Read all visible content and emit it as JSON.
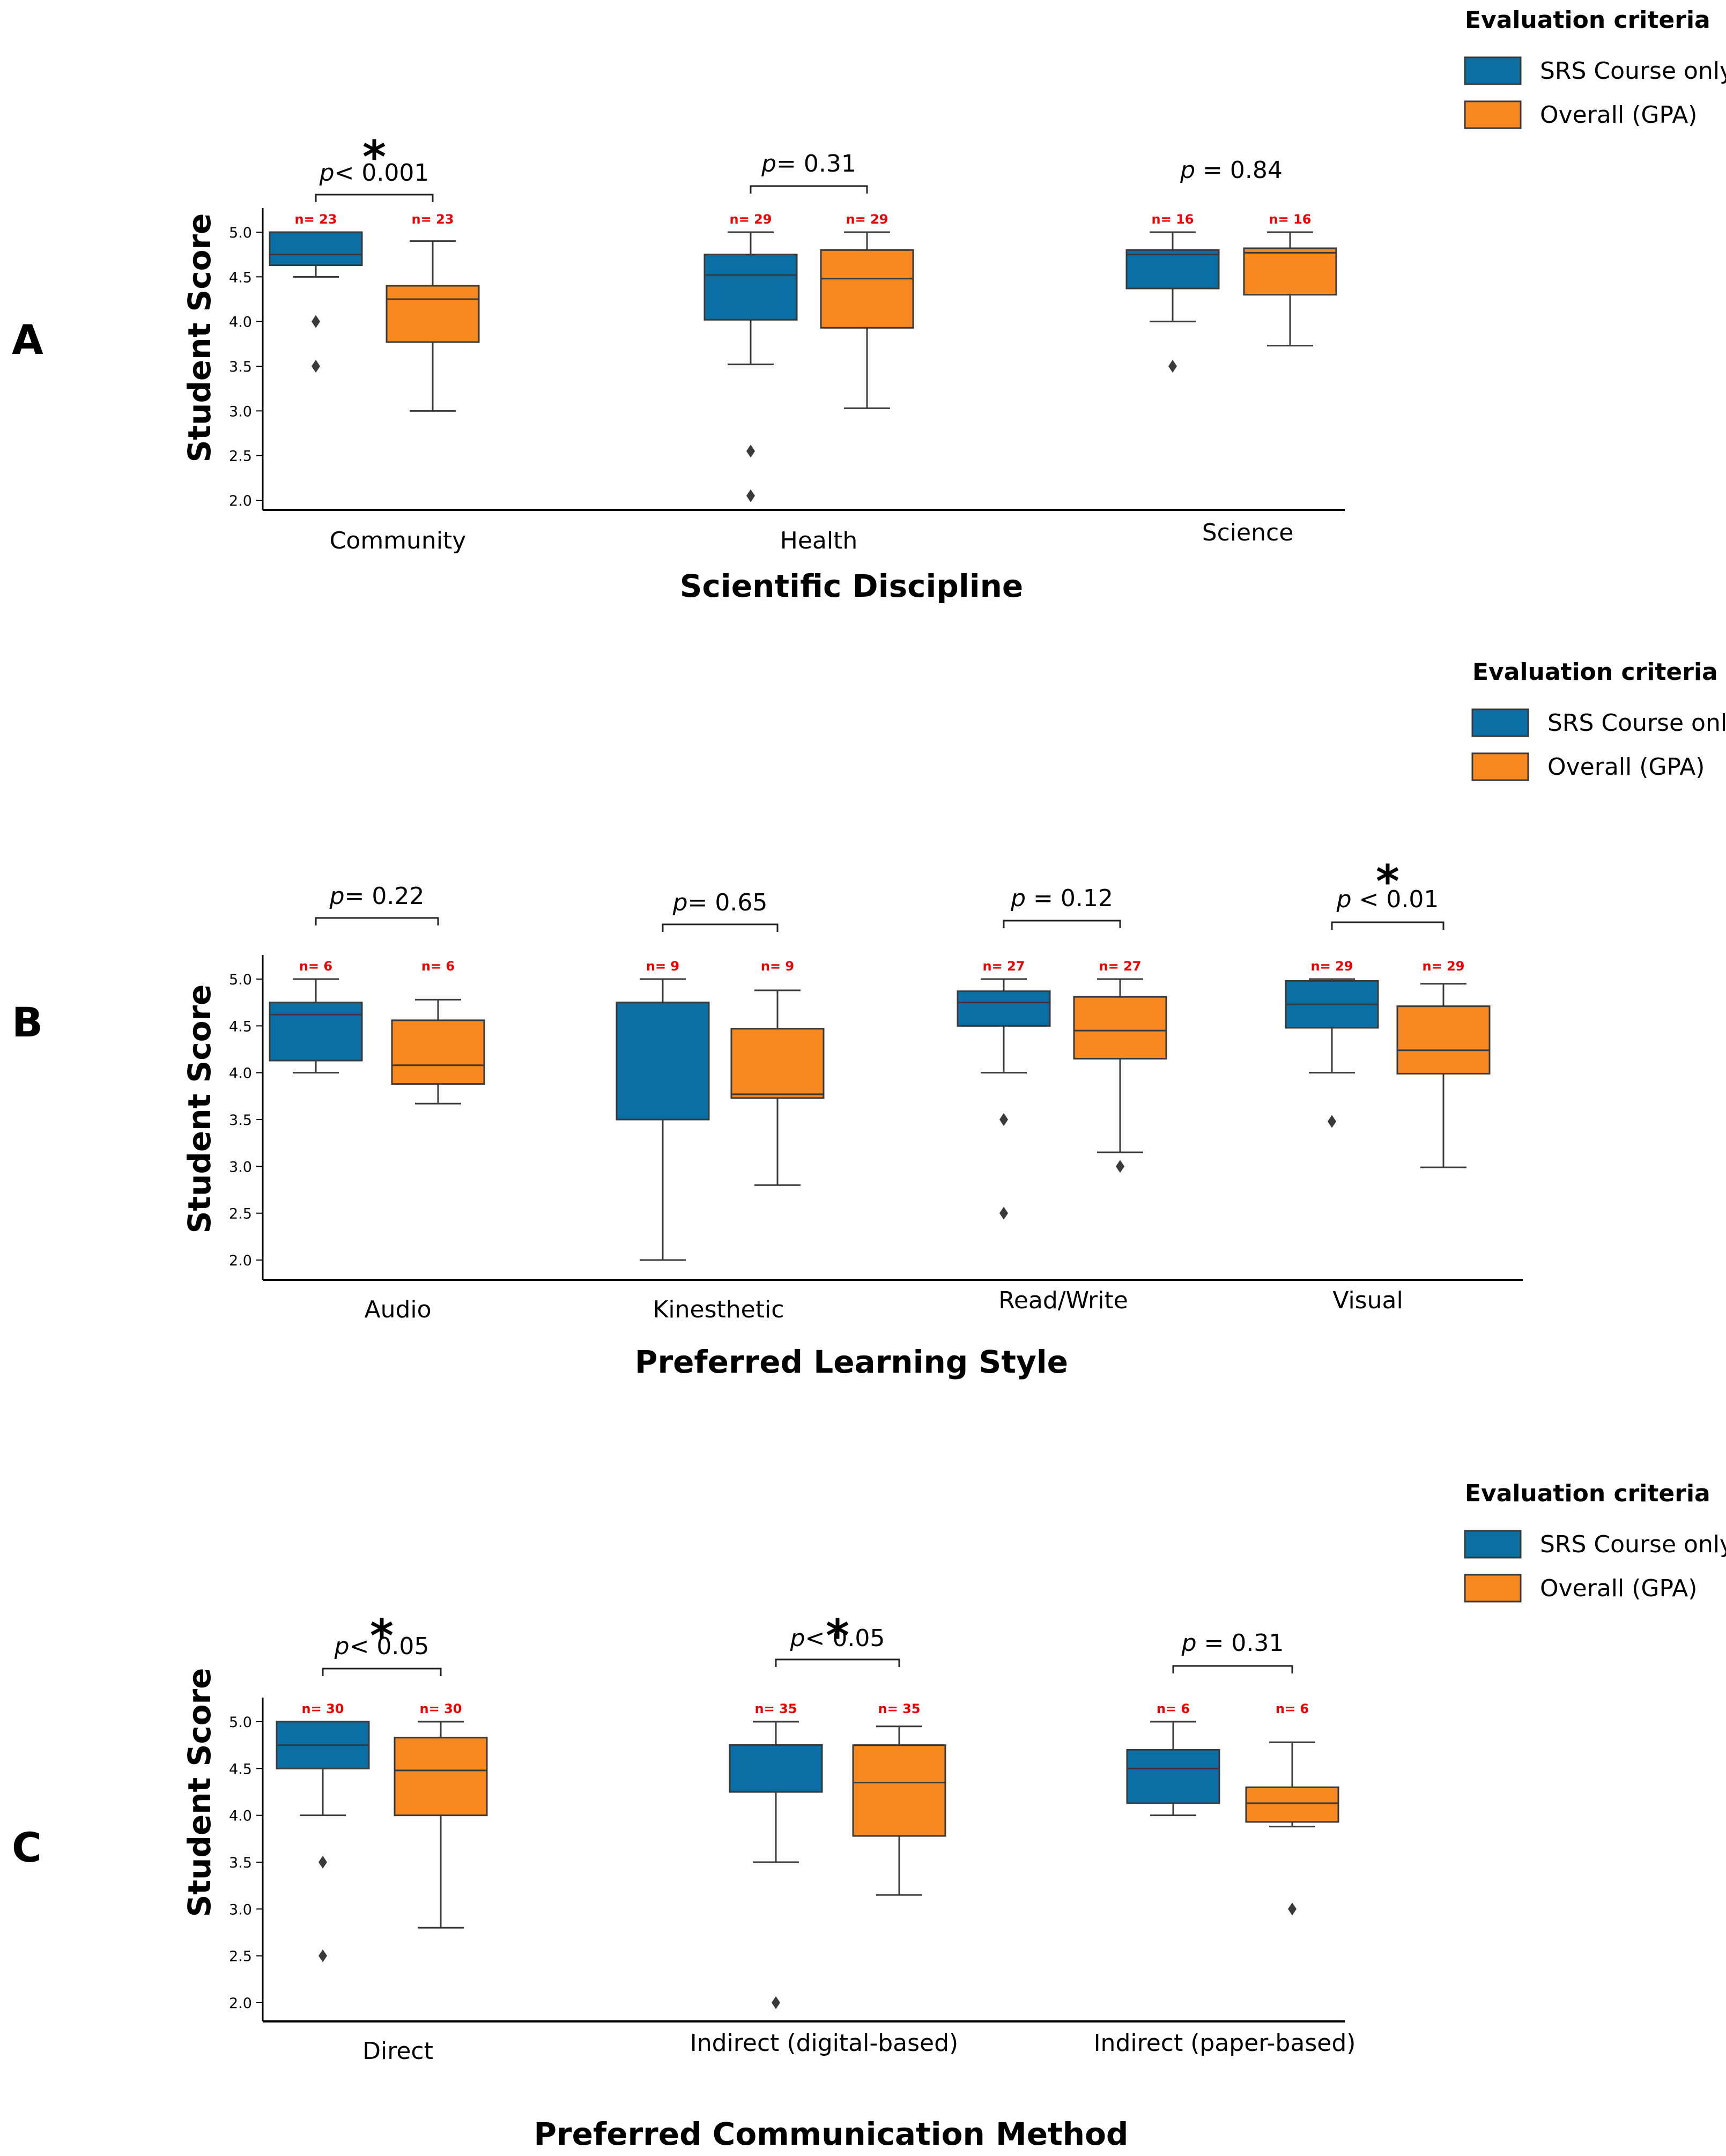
{
  "colors": {
    "srs": "#0a6fa4",
    "gpa": "#f7871f",
    "line": "#3a3a3a",
    "n_label": "#ee0000"
  },
  "legend": {
    "title": "Evaluation criteria",
    "items": [
      {
        "label": "SRS Course only",
        "color": "#0a6fa4"
      },
      {
        "label": "Overall (GPA)",
        "color": "#f7871f"
      }
    ]
  },
  "chart_data": [
    {
      "panel": "A",
      "type": "box",
      "ylabel": "Student Score",
      "xlabel": "Scientific Discipline",
      "ylim": [
        2.0,
        5.0
      ],
      "yticks": [
        "5.0",
        "4.5",
        "4.0",
        "3.5",
        "3.0",
        "2.5",
        "2.0"
      ],
      "series": [
        "SRS Course only",
        "Overall (GPA)"
      ],
      "groups": [
        {
          "category": "Community",
          "p_label": "p",
          "p_text": "< 0.001",
          "significant": true,
          "bracket": true,
          "boxes": [
            {
              "n": "n= 23",
              "whisker_low": 4.5,
              "q1": 4.63,
              "median": 4.75,
              "q3": 5.0,
              "whisker_high": 5.0,
              "outliers": [
                4.0,
                3.5
              ]
            },
            {
              "n": "n= 23",
              "whisker_low": 3.0,
              "q1": 3.77,
              "median": 4.25,
              "q3": 4.4,
              "whisker_high": 4.9,
              "outliers": []
            }
          ]
        },
        {
          "category": "Health",
          "p_label": "p",
          "p_text": "= 0.31",
          "significant": false,
          "bracket": true,
          "boxes": [
            {
              "n": "n= 29",
              "whisker_low": 3.52,
              "q1": 4.02,
              "median": 4.52,
              "q3": 4.75,
              "whisker_high": 5.0,
              "outliers": [
                2.55,
                2.05
              ]
            },
            {
              "n": "n= 29",
              "whisker_low": 3.03,
              "q1": 3.93,
              "median": 4.48,
              "q3": 4.8,
              "whisker_high": 5.0,
              "outliers": []
            }
          ]
        },
        {
          "category": "Science",
          "p_label": "p",
          "p_text": " = 0.84",
          "significant": false,
          "bracket": false,
          "boxes": [
            {
              "n": "n= 16",
              "whisker_low": 4.0,
              "q1": 4.37,
              "median": 4.75,
              "q3": 4.8,
              "whisker_high": 5.0,
              "outliers": [
                3.5
              ]
            },
            {
              "n": "n= 16",
              "whisker_low": 3.73,
              "q1": 4.3,
              "median": 4.77,
              "q3": 4.82,
              "whisker_high": 5.0,
              "outliers": []
            }
          ]
        }
      ]
    },
    {
      "panel": "B",
      "type": "box",
      "ylabel": "Student Score",
      "xlabel": "Preferred Learning Style",
      "ylim": [
        2.0,
        5.0
      ],
      "yticks": [
        "5.0",
        "4.5",
        "4.0",
        "3.5",
        "3.0",
        "2.5",
        "2.0"
      ],
      "series": [
        "SRS Course only",
        "Overall (GPA)"
      ],
      "groups": [
        {
          "category": "Audio",
          "p_label": "p",
          "p_text": "= 0.22",
          "significant": false,
          "bracket": true,
          "boxes": [
            {
              "n": "n= 6",
              "whisker_low": 4.0,
              "q1": 4.13,
              "median": 4.62,
              "q3": 4.75,
              "whisker_high": 5.0,
              "outliers": []
            },
            {
              "n": "n= 6",
              "whisker_low": 3.67,
              "q1": 3.88,
              "median": 4.08,
              "q3": 4.56,
              "whisker_high": 4.78,
              "outliers": []
            }
          ]
        },
        {
          "category": "Kinesthetic",
          "p_label": "p",
          "p_text": "= 0.65",
          "significant": false,
          "bracket": true,
          "boxes": [
            {
              "n": "n= 9",
              "whisker_low": 2.0,
              "q1": 3.5,
              "median": 4.75,
              "q3": 4.75,
              "whisker_high": 5.0,
              "outliers": []
            },
            {
              "n": "n= 9",
              "whisker_low": 2.8,
              "q1": 3.73,
              "median": 3.77,
              "q3": 4.47,
              "whisker_high": 4.88,
              "outliers": []
            }
          ]
        },
        {
          "category": "Read/Write",
          "p_label": "p",
          "p_text": " = 0.12",
          "significant": false,
          "bracket": true,
          "boxes": [
            {
              "n": "n= 27",
              "whisker_low": 4.0,
              "q1": 4.5,
              "median": 4.75,
              "q3": 4.87,
              "whisker_high": 5.0,
              "outliers": [
                3.5,
                2.5
              ]
            },
            {
              "n": "n= 27",
              "whisker_low": 3.15,
              "q1": 4.15,
              "median": 4.45,
              "q3": 4.81,
              "whisker_high": 5.0,
              "outliers": [
                3.0
              ]
            }
          ]
        },
        {
          "category": "Visual",
          "p_label": "p",
          "p_text": " < 0.01",
          "significant": true,
          "bracket": true,
          "boxes": [
            {
              "n": "n= 29",
              "whisker_low": 4.0,
              "q1": 4.48,
              "median": 4.73,
              "q3": 4.98,
              "whisker_high": 5.0,
              "outliers": [
                3.48
              ]
            },
            {
              "n": "n= 29",
              "whisker_low": 2.99,
              "q1": 3.99,
              "median": 4.24,
              "q3": 4.71,
              "whisker_high": 4.95,
              "outliers": []
            }
          ]
        }
      ]
    },
    {
      "panel": "C",
      "type": "box",
      "ylabel": "Student Score",
      "xlabel": "Preferred Communication Method",
      "ylim": [
        2.0,
        5.0
      ],
      "yticks": [
        "5.0",
        "4.5",
        "4.0",
        "3.5",
        "3.0",
        "2.5",
        "2.0"
      ],
      "series": [
        "SRS Course only",
        "Overall (GPA)"
      ],
      "groups": [
        {
          "category": "Direct",
          "p_label": "p",
          "p_text": "< 0.05",
          "significant": true,
          "bracket": true,
          "boxes": [
            {
              "n": "n= 30",
              "whisker_low": 4.0,
              "q1": 4.5,
              "median": 4.75,
              "q3": 5.0,
              "whisker_high": 5.0,
              "outliers": [
                3.5,
                2.5
              ]
            },
            {
              "n": "n= 30",
              "whisker_low": 2.8,
              "q1": 4.0,
              "median": 4.48,
              "q3": 4.83,
              "whisker_high": 5.0,
              "outliers": []
            }
          ]
        },
        {
          "category": "Indirect (digital-based)",
          "p_label": "p",
          "p_text": "< 0.05",
          "significant": true,
          "bracket": true,
          "boxes": [
            {
              "n": "n= 35",
              "whisker_low": 3.5,
              "q1": 4.25,
              "median": 4.75,
              "q3": 4.75,
              "whisker_high": 5.0,
              "outliers": [
                2.0
              ]
            },
            {
              "n": "n= 35",
              "whisker_low": 3.15,
              "q1": 3.78,
              "median": 4.35,
              "q3": 4.75,
              "whisker_high": 4.95,
              "outliers": []
            }
          ]
        },
        {
          "category": "Indirect (paper-based)",
          "p_label": "p",
          "p_text": " = 0.31",
          "significant": false,
          "bracket": true,
          "boxes": [
            {
              "n": "n= 6",
              "whisker_low": 4.0,
              "q1": 4.13,
              "median": 4.5,
              "q3": 4.7,
              "whisker_high": 5.0,
              "outliers": []
            },
            {
              "n": "n= 6",
              "whisker_low": 3.88,
              "q1": 3.93,
              "median": 4.13,
              "q3": 4.3,
              "whisker_high": 4.78,
              "outliers": [
                3.0
              ]
            }
          ]
        }
      ]
    }
  ]
}
